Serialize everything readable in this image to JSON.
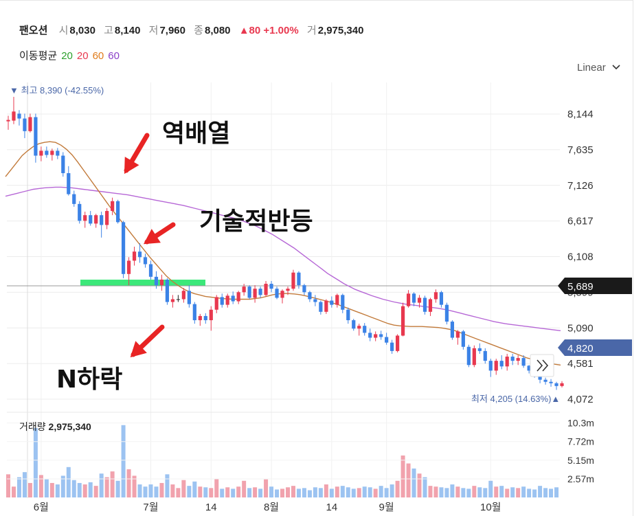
{
  "header": {
    "name": "팬오션",
    "open_label": "시",
    "open": "8,030",
    "high_label": "고",
    "high": "8,140",
    "low_label": "저",
    "low": "7,960",
    "close_label": "종",
    "close": "8,080",
    "change": "▲80 +1.00%",
    "volume_label": "거",
    "volume": "2,975,340"
  },
  "moving_avg": {
    "label": "이동평균",
    "periods": [
      "20",
      "20",
      "60",
      "60"
    ],
    "colors": [
      "#2ca02c",
      "#e8384f",
      "#e07b1a",
      "#8a3fc8"
    ]
  },
  "scale_mode": "Linear",
  "chart_data": {
    "type": "candlestick",
    "y_ticks": [
      "8,144",
      "7,635",
      "7,126",
      "6,617",
      "6,108",
      "5,599",
      "5,090",
      "4,581",
      "4,072"
    ],
    "ylim": [
      4072,
      8144
    ],
    "x_ticks": [
      "6월",
      "7월",
      "14",
      "8월",
      "14",
      "9월",
      "10월"
    ],
    "max_label": "▼ 최고 8,390 (-42.55%)",
    "min_label": "최저 4,205 (14.63%)▲",
    "current_price_label": "5,689",
    "current_price": 5689,
    "last_close_label": "4,820",
    "last_close": 4820,
    "candles": [
      [
        8040,
        8120,
        7920,
        8060
      ],
      [
        8050,
        8390,
        8000,
        8180
      ],
      [
        8150,
        8200,
        7980,
        8080
      ],
      [
        8080,
        8150,
        7800,
        7900
      ],
      [
        7900,
        8150,
        7880,
        8100
      ],
      [
        8100,
        8150,
        7450,
        7550
      ],
      [
        7550,
        7680,
        7470,
        7620
      ],
      [
        7620,
        7680,
        7520,
        7560
      ],
      [
        7560,
        7650,
        7480,
        7620
      ],
      [
        7620,
        7660,
        7500,
        7550
      ],
      [
        7550,
        7600,
        7250,
        7300
      ],
      [
        7300,
        7400,
        6980,
        7000
      ],
      [
        7000,
        7050,
        6820,
        6860
      ],
      [
        6860,
        6900,
        6580,
        6620
      ],
      [
        6620,
        6750,
        6520,
        6700
      ],
      [
        6700,
        6760,
        6550,
        6580
      ],
      [
        6580,
        6720,
        6520,
        6700
      ],
      [
        6700,
        6750,
        6380,
        6560
      ],
      [
        6560,
        6800,
        6500,
        6760
      ],
      [
        6760,
        6950,
        6700,
        6900
      ],
      [
        6900,
        6920,
        6580,
        6600
      ],
      [
        6600,
        6620,
        5800,
        5860
      ],
      [
        5860,
        6100,
        5700,
        6050
      ],
      [
        6050,
        6250,
        5980,
        6180
      ],
      [
        6180,
        6300,
        6020,
        6100
      ],
      [
        6100,
        6150,
        5950,
        6000
      ],
      [
        6000,
        6050,
        5780,
        5820
      ],
      [
        5820,
        5900,
        5650,
        5700
      ],
      [
        5700,
        5850,
        5620,
        5780
      ],
      [
        5780,
        5800,
        5420,
        5460
      ],
      [
        5460,
        5560,
        5380,
        5500
      ],
      [
        5500,
        5560,
        5460,
        5500
      ],
      [
        5500,
        5660,
        5450,
        5620
      ],
      [
        5620,
        5700,
        5380,
        5430
      ],
      [
        5430,
        5460,
        5150,
        5200
      ],
      [
        5200,
        5290,
        5120,
        5260
      ],
      [
        5260,
        5300,
        5150,
        5200
      ],
      [
        5200,
        5400,
        5050,
        5350
      ],
      [
        5350,
        5560,
        5300,
        5530
      ],
      [
        5530,
        5580,
        5380,
        5420
      ],
      [
        5420,
        5580,
        5380,
        5550
      ],
      [
        5550,
        5610,
        5430,
        5470
      ],
      [
        5470,
        5620,
        5430,
        5600
      ],
      [
        5600,
        5720,
        5550,
        5680
      ],
      [
        5680,
        5700,
        5500,
        5520
      ],
      [
        5520,
        5700,
        5450,
        5650
      ],
      [
        5650,
        5680,
        5520,
        5560
      ],
      [
        5560,
        5760,
        5540,
        5720
      ],
      [
        5720,
        5760,
        5600,
        5650
      ],
      [
        5650,
        5680,
        5500,
        5520
      ],
      [
        5520,
        5640,
        5440,
        5620
      ],
      [
        5620,
        5680,
        5560,
        5650
      ],
      [
        5650,
        5920,
        5620,
        5880
      ],
      [
        5880,
        5900,
        5650,
        5700
      ],
      [
        5700,
        5720,
        5560,
        5600
      ],
      [
        5600,
        5620,
        5460,
        5500
      ],
      [
        5500,
        5560,
        5400,
        5460
      ],
      [
        5460,
        5480,
        5280,
        5320
      ],
      [
        5320,
        5500,
        5290,
        5480
      ],
      [
        5480,
        5540,
        5380,
        5420
      ],
      [
        5420,
        5580,
        5380,
        5560
      ],
      [
        5560,
        5580,
        5300,
        5350
      ],
      [
        5350,
        5380,
        5150,
        5200
      ],
      [
        5200,
        5220,
        5050,
        5080
      ],
      [
        5080,
        5150,
        4980,
        5120
      ],
      [
        5120,
        5160,
        4980,
        5020
      ],
      [
        5020,
        5080,
        4900,
        4950
      ],
      [
        4950,
        5040,
        4900,
        5000
      ],
      [
        5000,
        5050,
        4920,
        4960
      ],
      [
        4960,
        5020,
        4850,
        4880
      ],
      [
        4880,
        4920,
        4720,
        4760
      ],
      [
        4760,
        5000,
        4740,
        4980
      ],
      [
        4980,
        5450,
        4970,
        5400
      ],
      [
        5400,
        5630,
        5380,
        5580
      ],
      [
        5580,
        5600,
        5400,
        5450
      ],
      [
        5450,
        5560,
        5380,
        5520
      ],
      [
        5520,
        5550,
        5280,
        5320
      ],
      [
        5320,
        5520,
        5260,
        5500
      ],
      [
        5500,
        5640,
        5450,
        5600
      ],
      [
        5600,
        5620,
        5380,
        5420
      ],
      [
        5420,
        5450,
        5140,
        5180
      ],
      [
        5180,
        5200,
        4920,
        4950
      ],
      [
        4950,
        5060,
        4850,
        5040
      ],
      [
        5040,
        5060,
        4780,
        4820
      ],
      [
        4820,
        4850,
        4530,
        4560
      ],
      [
        4560,
        4840,
        4530,
        4800
      ],
      [
        4800,
        4870,
        4720,
        4760
      ],
      [
        4760,
        4800,
        4580,
        4620
      ],
      [
        4620,
        4650,
        4390,
        4480
      ],
      [
        4480,
        4650,
        4420,
        4620
      ],
      [
        4620,
        4700,
        4500,
        4540
      ],
      [
        4540,
        4720,
        4480,
        4680
      ],
      [
        4680,
        4720,
        4560,
        4620
      ],
      [
        4620,
        4700,
        4560,
        4660
      ],
      [
        4660,
        4700,
        4520,
        4550
      ],
      [
        4550,
        4560,
        4440,
        4480
      ],
      [
        4480,
        4520,
        4380,
        4420
      ],
      [
        4420,
        4440,
        4300,
        4350
      ],
      [
        4350,
        4380,
        4280,
        4320
      ],
      [
        4320,
        4360,
        4250,
        4300
      ],
      [
        4300,
        4320,
        4205,
        4260
      ],
      [
        4260,
        4330,
        4240,
        4300
      ]
    ],
    "ma20": [
      7250,
      7350,
      7450,
      7550,
      7620,
      7680,
      7720,
      7740,
      7750,
      7740,
      7700,
      7640,
      7560,
      7460,
      7350,
      7240,
      7130,
      7020,
      6910,
      6800,
      6700,
      6600,
      6500,
      6400,
      6300,
      6200,
      6100,
      6010,
      5920,
      5830,
      5760,
      5700,
      5650,
      5610,
      5580,
      5560,
      5540,
      5530,
      5520,
      5510,
      5505,
      5500,
      5500,
      5500,
      5500,
      5510,
      5520,
      5540,
      5560,
      5575,
      5580,
      5580,
      5575,
      5565,
      5550,
      5530,
      5510,
      5490,
      5470,
      5445,
      5420,
      5390,
      5360,
      5330,
      5300,
      5270,
      5240,
      5210,
      5180,
      5150,
      5130,
      5120,
      5115,
      5110,
      5110,
      5110,
      5105,
      5100,
      5095,
      5085,
      5070,
      5050,
      5020,
      4990,
      4960,
      4930,
      4900,
      4870,
      4840,
      4810,
      4780,
      4750,
      4720,
      4690,
      4660,
      4640,
      4620,
      4600,
      4585,
      4570,
      4560
    ],
    "ma60": [
      6970,
      6990,
      7010,
      7030,
      7050,
      7070,
      7080,
      7090,
      7095,
      7100,
      7100,
      7095,
      7090,
      7080,
      7070,
      7060,
      7050,
      7040,
      7030,
      7020,
      7010,
      7000,
      6990,
      6975,
      6960,
      6945,
      6930,
      6915,
      6900,
      6885,
      6870,
      6855,
      6840,
      6820,
      6800,
      6780,
      6760,
      6740,
      6720,
      6700,
      6680,
      6660,
      6640,
      6610,
      6580,
      6550,
      6510,
      6470,
      6430,
      6380,
      6330,
      6280,
      6230,
      6170,
      6110,
      6050,
      5990,
      5930,
      5870,
      5820,
      5770,
      5720,
      5680,
      5640,
      5610,
      5580,
      5550,
      5525,
      5500,
      5480,
      5460,
      5445,
      5430,
      5420,
      5410,
      5400,
      5390,
      5380,
      5370,
      5355,
      5340,
      5320,
      5300,
      5280,
      5260,
      5240,
      5220,
      5200,
      5180,
      5165,
      5150,
      5140,
      5130,
      5120,
      5110,
      5100,
      5090,
      5080,
      5070,
      5060,
      5050
    ],
    "volume": {
      "label": "거래량",
      "value": "2,975,340",
      "ticks": [
        "10.3m",
        "7.72m",
        "5.15m",
        "2.57m"
      ],
      "ylim": [
        0,
        11400000
      ],
      "values": [
        3.2,
        1.5,
        2.8,
        3.5,
        2.0,
        9.6,
        3.1,
        2.5,
        2.0,
        1.8,
        3.0,
        4.2,
        2.4,
        2.0,
        1.8,
        2.1,
        1.6,
        3.3,
        2.8,
        3.6,
        2.3,
        10.0,
        3.9,
        3.0,
        1.8,
        1.5,
        1.8,
        1.5,
        2.0,
        3.2,
        1.8,
        1.3,
        2.4,
        1.6,
        2.2,
        1.5,
        1.4,
        1.3,
        2.6,
        1.2,
        1.4,
        1.2,
        1.5,
        2.3,
        1.3,
        1.4,
        1.2,
        2.5,
        1.5,
        1.1,
        1.2,
        1.4,
        1.6,
        1.2,
        1.3,
        1.0,
        1.4,
        1.3,
        1.8,
        1.2,
        1.5,
        1.6,
        1.4,
        1.2,
        1.3,
        1.5,
        1.4,
        1.2,
        1.6,
        1.3,
        1.8,
        2.3,
        5.8,
        4.7,
        4.0,
        3.3,
        2.8,
        1.6,
        1.5,
        1.4,
        1.3,
        1.8,
        1.5,
        1.3,
        1.2,
        1.6,
        1.4,
        1.3,
        2.3,
        1.5,
        1.6,
        1.2,
        1.4,
        1.3,
        1.5,
        1.2,
        1.1,
        1.6,
        1.3,
        1.2,
        1.4
      ],
      "unit": "m"
    }
  },
  "annotations": {
    "inverse_alignment": "역배열",
    "technical_rebound": "기술적반등",
    "n_decline": "N하락",
    "arrow_color": "#e82424",
    "support_zone_color": "#3ce87a"
  },
  "colors": {
    "up": "#e8384f",
    "down": "#3b82e6",
    "flat": "#222222",
    "badge_dark": "#1a1a1a",
    "badge_blue": "#4a67a8"
  }
}
